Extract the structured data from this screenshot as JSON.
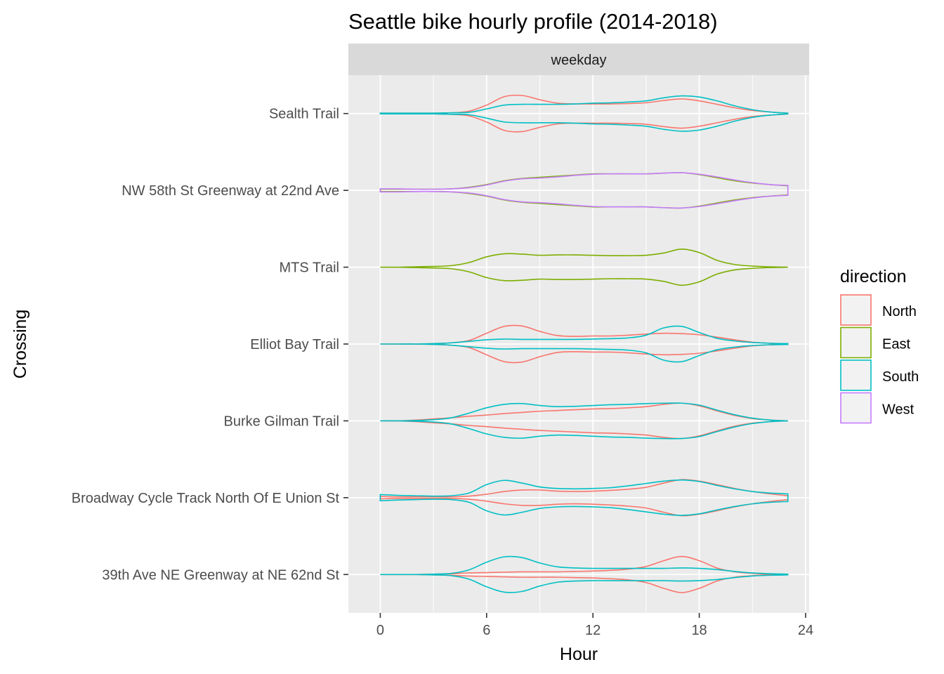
{
  "chart_data": {
    "type": "violin",
    "title": "Seattle bike hourly profile (2014-2018)",
    "facet": "weekday",
    "xlabel": "Hour",
    "ylabel": "Crossing",
    "xlim": [
      -1.8,
      24.2
    ],
    "x_ticks": [
      0,
      6,
      12,
      18,
      24
    ],
    "grid": true,
    "legend": {
      "title": "direction",
      "placement": "right",
      "entries": [
        {
          "name": "North",
          "color": "#F8766D"
        },
        {
          "name": "East",
          "color": "#7CAE00"
        },
        {
          "name": "South",
          "color": "#00BFC4"
        },
        {
          "name": "West",
          "color": "#C77CFF"
        }
      ]
    },
    "crossings": [
      "39th Ave NE Greenway at NE 62nd St",
      "Broadway Cycle Track North Of E Union St",
      "Burke Gilman Trail",
      "Elliot Bay Trail",
      "MTS Trail",
      "NW 58th St Greenway at 22nd Ave",
      "Sealth Trail"
    ],
    "hours": [
      0,
      1,
      2,
      3,
      4,
      5,
      6,
      7,
      8,
      9,
      10,
      11,
      12,
      13,
      14,
      15,
      16,
      17,
      18,
      19,
      20,
      21,
      22,
      23
    ],
    "series": [
      {
        "crossing": "Sealth Trail",
        "direction": "North",
        "width": [
          0.01,
          0.01,
          0.01,
          0.01,
          0.02,
          0.06,
          0.22,
          0.44,
          0.47,
          0.36,
          0.27,
          0.25,
          0.25,
          0.25,
          0.26,
          0.28,
          0.34,
          0.38,
          0.33,
          0.24,
          0.15,
          0.08,
          0.04,
          0.01
        ]
      },
      {
        "crossing": "Sealth Trail",
        "direction": "South",
        "width": [
          0.01,
          0.01,
          0.01,
          0.01,
          0.02,
          0.03,
          0.12,
          0.22,
          0.24,
          0.24,
          0.24,
          0.25,
          0.27,
          0.28,
          0.3,
          0.33,
          0.41,
          0.46,
          0.43,
          0.33,
          0.2,
          0.1,
          0.04,
          0.01
        ]
      },
      {
        "crossing": "NW 58th St Greenway at 22nd Ave",
        "direction": "East",
        "width": [
          0.03,
          0.03,
          0.03,
          0.03,
          0.04,
          0.08,
          0.15,
          0.25,
          0.31,
          0.34,
          0.37,
          0.4,
          0.43,
          0.43,
          0.43,
          0.43,
          0.45,
          0.46,
          0.41,
          0.33,
          0.25,
          0.19,
          0.15,
          0.12
        ]
      },
      {
        "crossing": "NW 58th St Greenway at 22nd Ave",
        "direction": "West",
        "width": [
          0.04,
          0.04,
          0.03,
          0.03,
          0.04,
          0.07,
          0.14,
          0.24,
          0.3,
          0.32,
          0.35,
          0.39,
          0.42,
          0.43,
          0.43,
          0.43,
          0.45,
          0.46,
          0.42,
          0.35,
          0.27,
          0.2,
          0.15,
          0.13
        ]
      },
      {
        "crossing": "MTS Trail",
        "direction": "East",
        "width": [
          0.0,
          0.0,
          0.01,
          0.02,
          0.04,
          0.12,
          0.27,
          0.35,
          0.34,
          0.31,
          0.32,
          0.32,
          0.31,
          0.3,
          0.3,
          0.31,
          0.37,
          0.47,
          0.38,
          0.18,
          0.07,
          0.03,
          0.01,
          0.0
        ]
      },
      {
        "crossing": "Elliot Bay Trail",
        "direction": "North",
        "width": [
          0.0,
          0.0,
          0.0,
          0.01,
          0.03,
          0.09,
          0.28,
          0.46,
          0.47,
          0.33,
          0.22,
          0.2,
          0.21,
          0.21,
          0.23,
          0.26,
          0.28,
          0.27,
          0.24,
          0.18,
          0.11,
          0.05,
          0.02,
          0.01
        ]
      },
      {
        "crossing": "Elliot Bay Trail",
        "direction": "South",
        "width": [
          0.0,
          0.0,
          0.0,
          0.01,
          0.03,
          0.07,
          0.11,
          0.13,
          0.12,
          0.12,
          0.12,
          0.12,
          0.13,
          0.14,
          0.16,
          0.23,
          0.42,
          0.46,
          0.3,
          0.15,
          0.08,
          0.04,
          0.02,
          0.01
        ]
      },
      {
        "crossing": "Burke Gilman Trail",
        "direction": "North",
        "width": [
          0.0,
          0.0,
          0.02,
          0.05,
          0.08,
          0.12,
          0.15,
          0.19,
          0.22,
          0.25,
          0.27,
          0.29,
          0.31,
          0.32,
          0.34,
          0.37,
          0.43,
          0.46,
          0.39,
          0.26,
          0.14,
          0.06,
          0.02,
          0.0
        ]
      },
      {
        "crossing": "Burke Gilman Trail",
        "direction": "South",
        "width": [
          0.0,
          0.0,
          0.01,
          0.03,
          0.08,
          0.2,
          0.34,
          0.43,
          0.45,
          0.4,
          0.37,
          0.38,
          0.4,
          0.42,
          0.43,
          0.45,
          0.46,
          0.46,
          0.41,
          0.28,
          0.16,
          0.07,
          0.02,
          0.0
        ]
      },
      {
        "crossing": "Broadway Cycle Track North Of E Union St",
        "direction": "North",
        "width": [
          0.03,
          0.02,
          0.02,
          0.02,
          0.02,
          0.04,
          0.09,
          0.16,
          0.2,
          0.2,
          0.17,
          0.16,
          0.17,
          0.19,
          0.22,
          0.27,
          0.38,
          0.47,
          0.43,
          0.34,
          0.24,
          0.16,
          0.1,
          0.05
        ]
      },
      {
        "crossing": "Broadway Cycle Track North Of E Union St",
        "direction": "South",
        "width": [
          0.08,
          0.06,
          0.05,
          0.04,
          0.05,
          0.12,
          0.34,
          0.45,
          0.38,
          0.28,
          0.24,
          0.23,
          0.24,
          0.26,
          0.31,
          0.37,
          0.43,
          0.46,
          0.42,
          0.32,
          0.23,
          0.16,
          0.12,
          0.1
        ]
      },
      {
        "crossing": "39th Ave NE Greenway at NE 62nd St",
        "direction": "North",
        "width": [
          0.0,
          0.0,
          0.0,
          0.01,
          0.02,
          0.04,
          0.05,
          0.06,
          0.07,
          0.07,
          0.07,
          0.08,
          0.09,
          0.11,
          0.14,
          0.21,
          0.36,
          0.47,
          0.36,
          0.17,
          0.07,
          0.03,
          0.01,
          0.0
        ]
      },
      {
        "crossing": "39th Ave NE Greenway at NE 62nd St",
        "direction": "South",
        "width": [
          0.0,
          0.0,
          0.0,
          0.01,
          0.03,
          0.12,
          0.32,
          0.46,
          0.44,
          0.3,
          0.2,
          0.17,
          0.16,
          0.16,
          0.16,
          0.16,
          0.16,
          0.17,
          0.16,
          0.13,
          0.08,
          0.04,
          0.02,
          0.01
        ]
      }
    ]
  }
}
